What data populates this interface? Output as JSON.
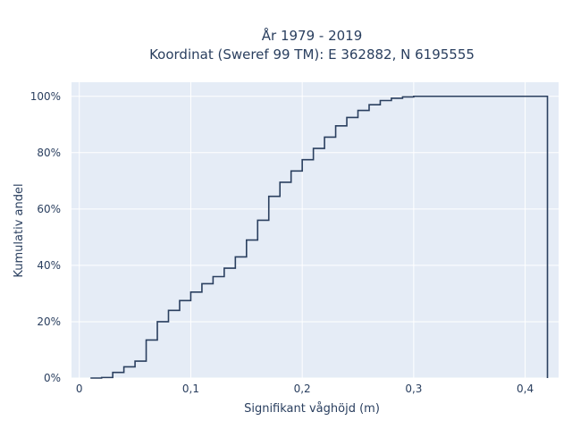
{
  "chart_data": {
    "type": "line",
    "title_line1": "År 1979 - 2019",
    "title_line2": "Koordinat (Sweref 99 TM): E 362882, N 6195555",
    "xlabel": "Signifikant våghöjd (m)",
    "ylabel": "Kumulativ andel",
    "xlim": [
      -0.007,
      0.43
    ],
    "ylim": [
      0,
      1.05
    ],
    "x_ticks": [
      {
        "value": 0,
        "label": "0"
      },
      {
        "value": 0.1,
        "label": "0,1"
      },
      {
        "value": 0.2,
        "label": "0,2"
      },
      {
        "value": 0.3,
        "label": "0,3"
      },
      {
        "value": 0.4,
        "label": "0,4"
      }
    ],
    "y_ticks": [
      {
        "value": 0,
        "label": "0%"
      },
      {
        "value": 0.2,
        "label": "20%"
      },
      {
        "value": 0.4,
        "label": "40%"
      },
      {
        "value": 0.6,
        "label": "60%"
      },
      {
        "value": 0.8,
        "label": "80%"
      },
      {
        "value": 1.0,
        "label": "100%"
      }
    ],
    "grid": true,
    "line_shape": "step",
    "series": [
      {
        "color": "#2a3f5f",
        "x": [
          0.01,
          0.02,
          0.03,
          0.04,
          0.05,
          0.06,
          0.07,
          0.08,
          0.09,
          0.1,
          0.11,
          0.12,
          0.13,
          0.14,
          0.15,
          0.16,
          0.17,
          0.18,
          0.19,
          0.2,
          0.21,
          0.22,
          0.23,
          0.24,
          0.25,
          0.26,
          0.27,
          0.28,
          0.29,
          0.3,
          0.42,
          0.42
        ],
        "y": [
          0.0,
          0.002,
          0.02,
          0.04,
          0.06,
          0.135,
          0.2,
          0.24,
          0.275,
          0.305,
          0.335,
          0.36,
          0.39,
          0.43,
          0.49,
          0.56,
          0.645,
          0.695,
          0.735,
          0.775,
          0.815,
          0.855,
          0.895,
          0.925,
          0.95,
          0.97,
          0.985,
          0.993,
          0.998,
          1.0,
          1.0,
          0.0
        ]
      }
    ]
  }
}
